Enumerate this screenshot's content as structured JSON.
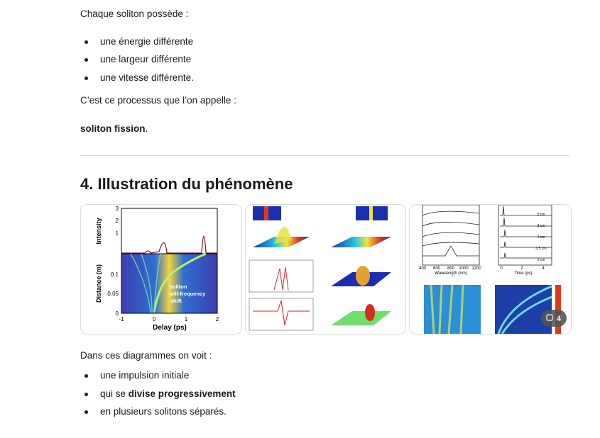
{
  "intro": "Chaque soliton possède :",
  "list1": [
    "une énergie différente",
    "une largeur différente",
    "une vitesse différente."
  ],
  "process": "C’est ce processus que l’on appelle :",
  "term": {
    "bold": "soliton fission",
    "rest": "."
  },
  "heading": "4. Illustration du phénomène",
  "figure1": {
    "intensity_label": "Intensity",
    "distance_label": "Distance (m)",
    "delay_label": "Delay (ps)",
    "intensity_ticks": [
      "3",
      "2",
      "1"
    ],
    "distance_ticks": [
      "0.1",
      "0.05",
      "0"
    ],
    "delay_ticks": [
      "-1",
      "0",
      "1",
      "2"
    ],
    "annotation": [
      "Soliton",
      "self-frequency",
      "shift"
    ]
  },
  "figure3": {
    "wavelength_label": "Wavelength (nm)",
    "time_label": "Time (ps)",
    "wavelength_ticks": [
      "400",
      "600",
      "800",
      "1000",
      "1200"
    ],
    "time_ticks": [
      "0",
      "2",
      "4"
    ],
    "distances": [
      "5 cm",
      "2 cm",
      "1 cm",
      "0.5 cm",
      "0 cm"
    ]
  },
  "image_count": "4",
  "outro": "Dans ces diagrammes on voit :",
  "list2": [
    {
      "text": "une impulsion initiale"
    },
    {
      "pre": "qui se ",
      "bold": "divise progressivement"
    },
    {
      "text": "en plusieurs solitons séparés."
    }
  ]
}
